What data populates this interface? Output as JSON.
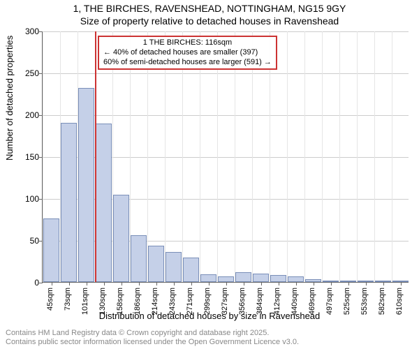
{
  "title_main": "1, THE BIRCHES, RAVENSHEAD, NOTTINGHAM, NG15 9GY",
  "title_sub": "Size of property relative to detached houses in Ravenshead",
  "y_axis_label": "Number of detached properties",
  "x_axis_label": "Distribution of detached houses by size in Ravenshead",
  "footer_line1": "Contains HM Land Registry data © Crown copyright and database right 2025.",
  "footer_line2": "Contains public sector information licensed under the Open Government Licence v3.0.",
  "chart": {
    "type": "bar",
    "ylim": [
      0,
      300
    ],
    "ytick_step": 50,
    "bar_fill": "#c5d0e8",
    "bar_border": "#7a8fb8",
    "background_color": "#ffffff",
    "grid_color": "#cccccc",
    "minor_grid_color": "#e5e5e5",
    "categories": [
      "45sqm",
      "73sqm",
      "101sqm",
      "130sqm",
      "158sqm",
      "186sqm",
      "214sqm",
      "243sqm",
      "271sqm",
      "299sqm",
      "327sqm",
      "356sqm",
      "384sqm",
      "412sqm",
      "440sqm",
      "469sqm",
      "497sqm",
      "525sqm",
      "553sqm",
      "582sqm",
      "610sqm"
    ],
    "values": [
      76,
      190,
      232,
      189,
      104,
      56,
      43,
      36,
      29,
      9,
      7,
      12,
      10,
      8,
      7,
      3,
      2,
      2,
      0,
      2,
      1
    ],
    "marker": {
      "color": "#cc3333",
      "position_category_index": 2.5,
      "box_line1": "1 THE BIRCHES: 116sqm",
      "box_line2": "← 40% of detached houses are smaller (397)",
      "box_line3": "60% of semi-detached houses are larger (591) →"
    }
  }
}
